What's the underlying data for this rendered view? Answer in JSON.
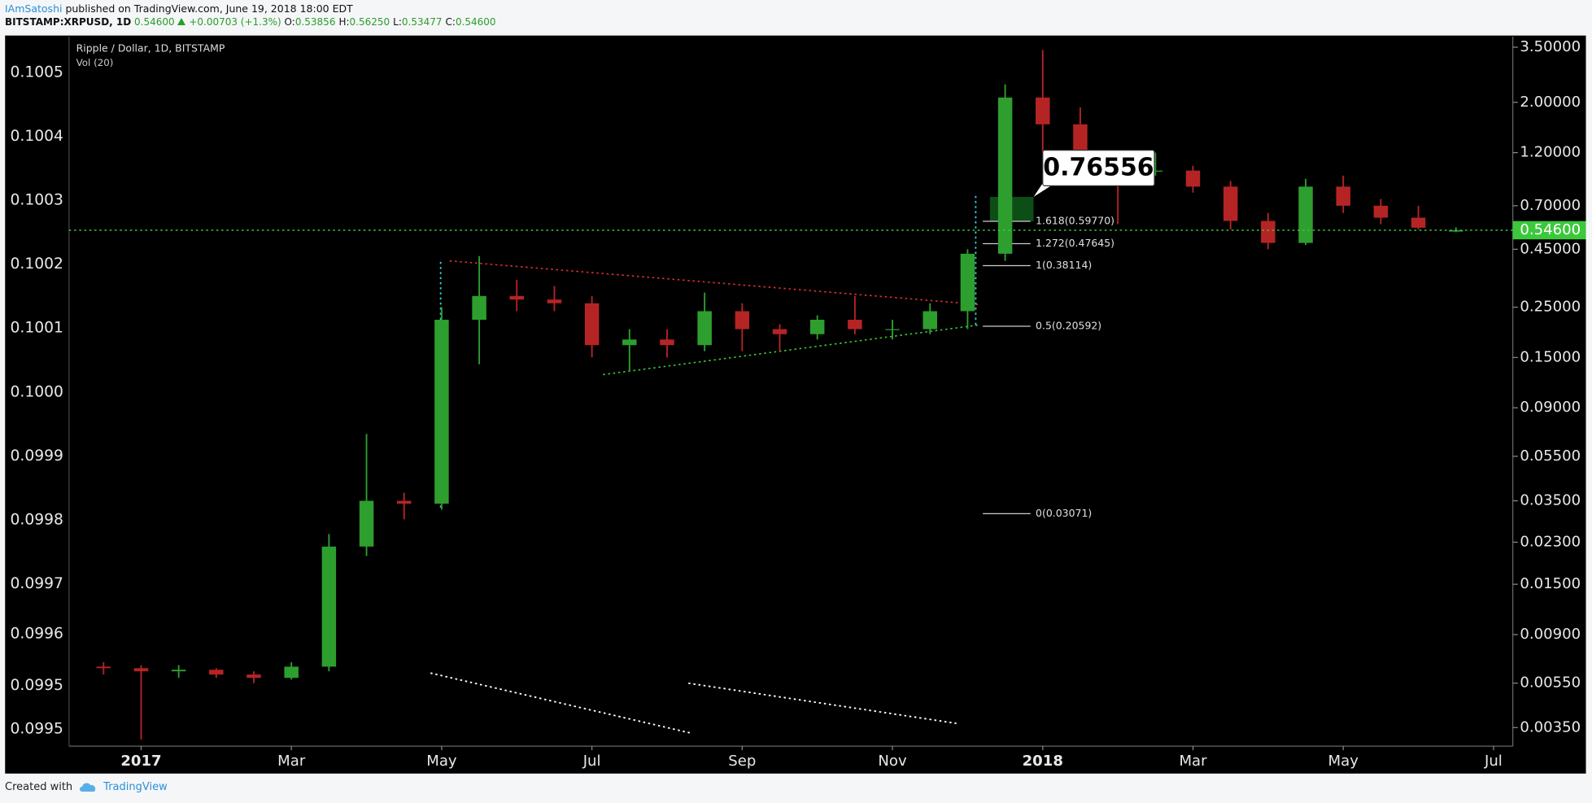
{
  "header": {
    "author": "IAmSatoshi",
    "published": "published on TradingView.com, June 19, 2018 18:00 EDT",
    "symbol": "BITSTAMP:XRPUSD, 1D",
    "last": "0.54600",
    "change": "+0.00703 (+1.3%)",
    "ohlc": [
      {
        "key": "O:",
        "value": "0.53856"
      },
      {
        "key": "H:",
        "value": "0.56250"
      },
      {
        "key": "L:",
        "value": "0.53477"
      },
      {
        "key": "C:",
        "value": "0.54600"
      }
    ]
  },
  "chart_data": {
    "type": "candlestick",
    "title": "Ripple / Dollar, 1D, BITSTAMP",
    "volume_label": "Vol (20)",
    "categories": [
      null,
      "2017",
      null,
      null,
      null,
      "Mar",
      null,
      null,
      null,
      "May",
      null,
      null,
      null,
      "Jul",
      null,
      null,
      null,
      "Sep",
      null,
      null,
      null,
      "Nov",
      null,
      null,
      null,
      "2018",
      null,
      null,
      null,
      "Mar",
      null,
      null,
      null,
      "May",
      null,
      null,
      null,
      "Jul"
    ],
    "open": [
      0.0065,
      0.0064,
      0.0062,
      0.0063,
      0.006,
      0.0058,
      0.0065,
      0.022,
      0.035,
      0.034,
      0.22,
      0.28,
      0.27,
      0.26,
      0.17,
      0.18,
      0.17,
      0.24,
      0.2,
      0.19,
      0.22,
      0.2,
      0.2,
      0.24,
      0.43,
      2.1,
      1.6,
      1.1,
      1.0,
      1.0,
      0.85,
      0.6,
      0.48,
      0.85,
      0.7,
      0.62,
      0.53856,
      null
    ],
    "high": [
      0.0068,
      0.0066,
      0.0066,
      0.0064,
      0.0062,
      0.0068,
      0.025,
      0.069,
      0.038,
      0.25,
      0.42,
      0.33,
      0.31,
      0.28,
      0.2,
      0.2,
      0.29,
      0.26,
      0.21,
      0.23,
      0.28,
      0.22,
      0.26,
      0.45,
      2.4,
      3.4,
      1.9,
      1.2,
      1.2,
      1.05,
      0.9,
      0.65,
      0.92,
      0.95,
      0.75,
      0.7,
      0.5625,
      null
    ],
    "low": [
      0.006,
      0.0031,
      0.0058,
      0.0058,
      0.0055,
      0.0057,
      0.0062,
      0.02,
      0.029,
      0.032,
      0.14,
      0.24,
      0.24,
      0.15,
      0.13,
      0.15,
      0.16,
      0.16,
      0.16,
      0.18,
      0.19,
      0.18,
      0.19,
      0.2,
      0.4,
      1.2,
      0.9,
      0.58,
      0.95,
      0.8,
      0.55,
      0.45,
      0.47,
      0.65,
      0.58,
      0.55,
      0.53477,
      null
    ],
    "close": [
      0.0064,
      0.0062,
      0.0063,
      0.006,
      0.0058,
      0.0065,
      0.022,
      0.035,
      0.034,
      0.22,
      0.28,
      0.27,
      0.26,
      0.17,
      0.18,
      0.17,
      0.24,
      0.2,
      0.19,
      0.22,
      0.2,
      0.2,
      0.24,
      0.43,
      2.1,
      1.6,
      1.1,
      1.0,
      1.0,
      0.85,
      0.6,
      0.48,
      0.85,
      0.7,
      0.62,
      0.56,
      0.546,
      null
    ],
    "up_color": "#2e9e2e",
    "down_color": "#b52424",
    "axis": "y2",
    "ylim": [
      0.099446,
      0.100556
    ],
    "yticks": [
      0.1005,
      0.1004,
      0.1003,
      0.1002,
      0.1001,
      {
        "value": 0.1,
        "label": "0.1000"
      },
      0.0999,
      0.0998,
      0.0997,
      {
        "value": 0.099622,
        "label": "0.0996"
      },
      {
        "value": 0.099541,
        "label": "0.0995"
      },
      {
        "value": 0.099473,
        "label": "0.0995"
      }
    ],
    "y2lim": [
      0.0029,
      3.9
    ],
    "y2scale": "log",
    "y2ticks": [
      {
        "value": 3.5,
        "label": "3.50000"
      },
      {
        "value": 2,
        "label": "2.00000"
      },
      {
        "value": 1.2,
        "label": "1.20000"
      },
      {
        "value": 0.7,
        "label": "0.70000"
      },
      {
        "value": 0.45,
        "label": "0.45000"
      },
      {
        "value": 0.25,
        "label": "0.25000"
      },
      {
        "value": 0.15,
        "label": "0.15000"
      },
      {
        "value": 0.09,
        "label": "0.09000"
      },
      {
        "value": 0.055,
        "label": "0.05500"
      },
      {
        "value": 0.035,
        "label": "0.03500"
      },
      {
        "value": 0.023,
        "label": "0.02300"
      },
      {
        "value": 0.015,
        "label": "0.01500"
      },
      {
        "value": 0.009,
        "label": "0.00900"
      },
      {
        "value": 0.0055,
        "label": "0.00550"
      },
      {
        "value": 0.0035,
        "label": "0.00350"
      }
    ],
    "grid": false,
    "price_line": {
      "value": 0.546,
      "label": "0.54600",
      "color": "#3cc83c"
    },
    "fib_levels": [
      {
        "value": 0.5977,
        "label": "1.618(0.59770)"
      },
      {
        "value": 0.47645,
        "label": "1.272(0.47645)"
      },
      {
        "value": 0.38114,
        "label": "1(0.38114)"
      },
      {
        "value": 0.20592,
        "label": "0.5(0.20592)"
      },
      {
        "value": 0.03071,
        "label": "0(0.03071)"
      }
    ],
    "target": 0.76556
  },
  "footer": {
    "created_with": "Created with",
    "brand": "TradingView"
  }
}
